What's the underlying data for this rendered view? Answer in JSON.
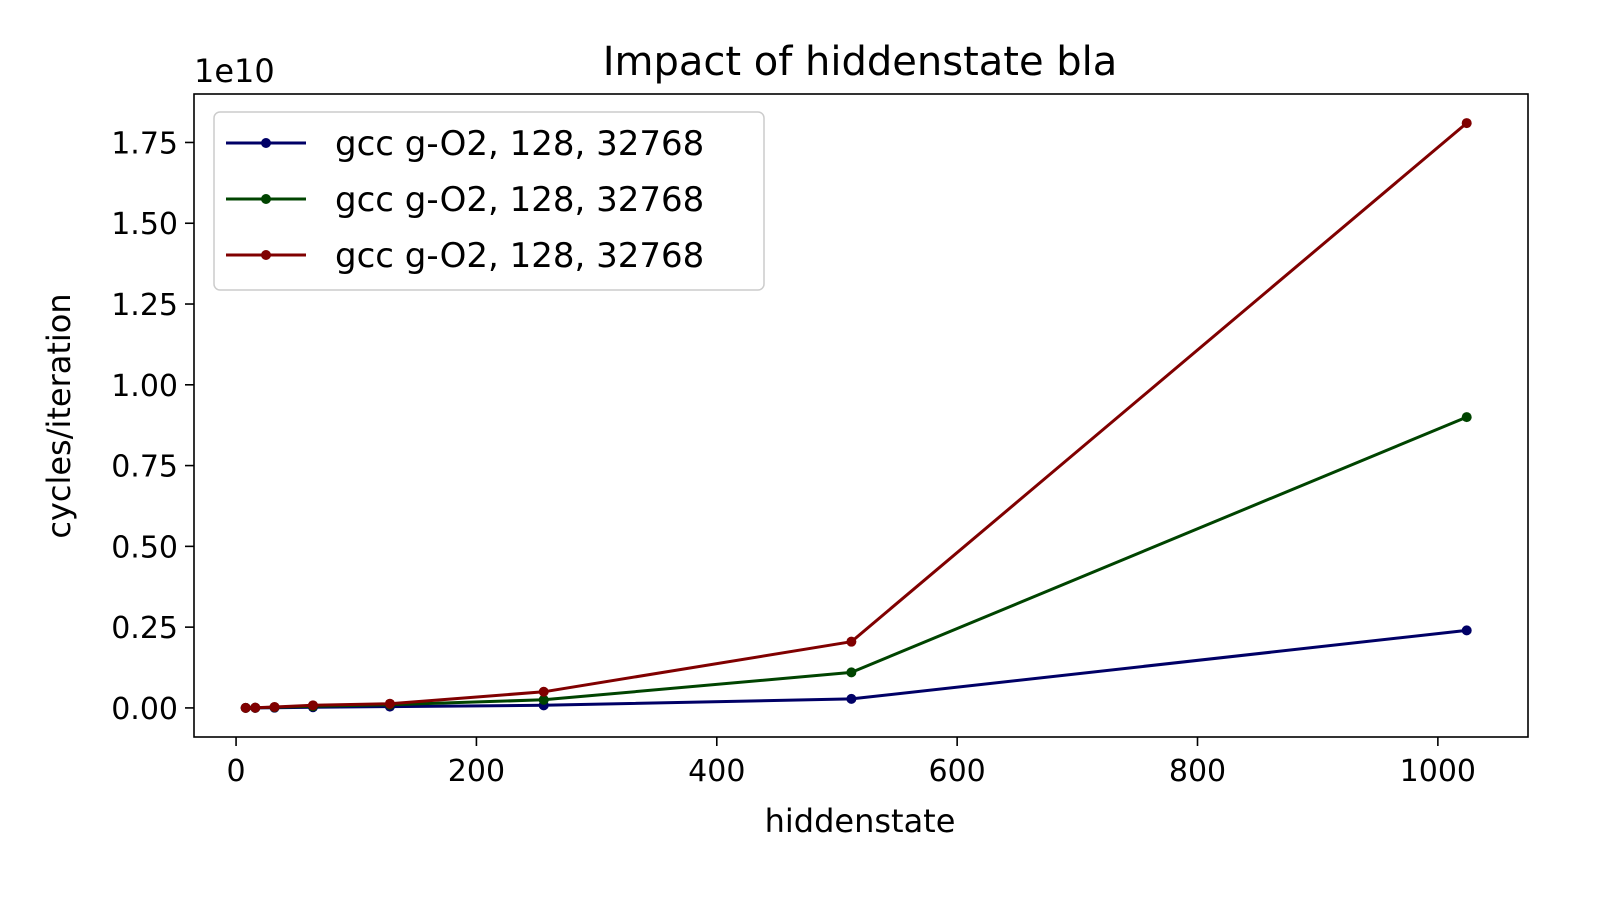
{
  "chart_data": {
    "type": "line",
    "title": "Impact of hiddenstate bla",
    "xlabel": "hiddenstate",
    "ylabel": "cycles/iteration",
    "y_offset_label": "1e10",
    "x": [
      8,
      16,
      32,
      64,
      128,
      256,
      512,
      1024
    ],
    "xlim": [
      -35,
      1075
    ],
    "ylim": [
      -0.09,
      1.9
    ],
    "x_ticks": [
      0,
      200,
      400,
      600,
      800,
      1000
    ],
    "x_tick_labels": [
      "0",
      "200",
      "400",
      "600",
      "800",
      "1000"
    ],
    "y_ticks": [
      0,
      0.25,
      0.5,
      0.75,
      1.0,
      1.25,
      1.5,
      1.75
    ],
    "y_tick_labels": [
      "0.00",
      "0.25",
      "0.50",
      "0.75",
      "1.00",
      "1.25",
      "1.50",
      "1.75"
    ],
    "grid": false,
    "legend_position": "top-left",
    "series": [
      {
        "name": "gcc g-O2, 128, 32768",
        "color": "#000066",
        "values": [
          0.0001,
          0.0002,
          0.0008,
          0.002,
          0.004,
          0.008,
          0.028,
          0.24
        ]
      },
      {
        "name": "gcc g-O2, 128, 32768",
        "color": "#004400",
        "values": [
          0.0002,
          0.0005,
          0.002,
          0.005,
          0.01,
          0.025,
          0.11,
          0.9
        ]
      },
      {
        "name": "gcc g-O2, 128, 32768",
        "color": "#800000",
        "values": [
          0.0003,
          0.0008,
          0.003,
          0.008,
          0.013,
          0.05,
          0.205,
          1.81
        ]
      }
    ]
  }
}
